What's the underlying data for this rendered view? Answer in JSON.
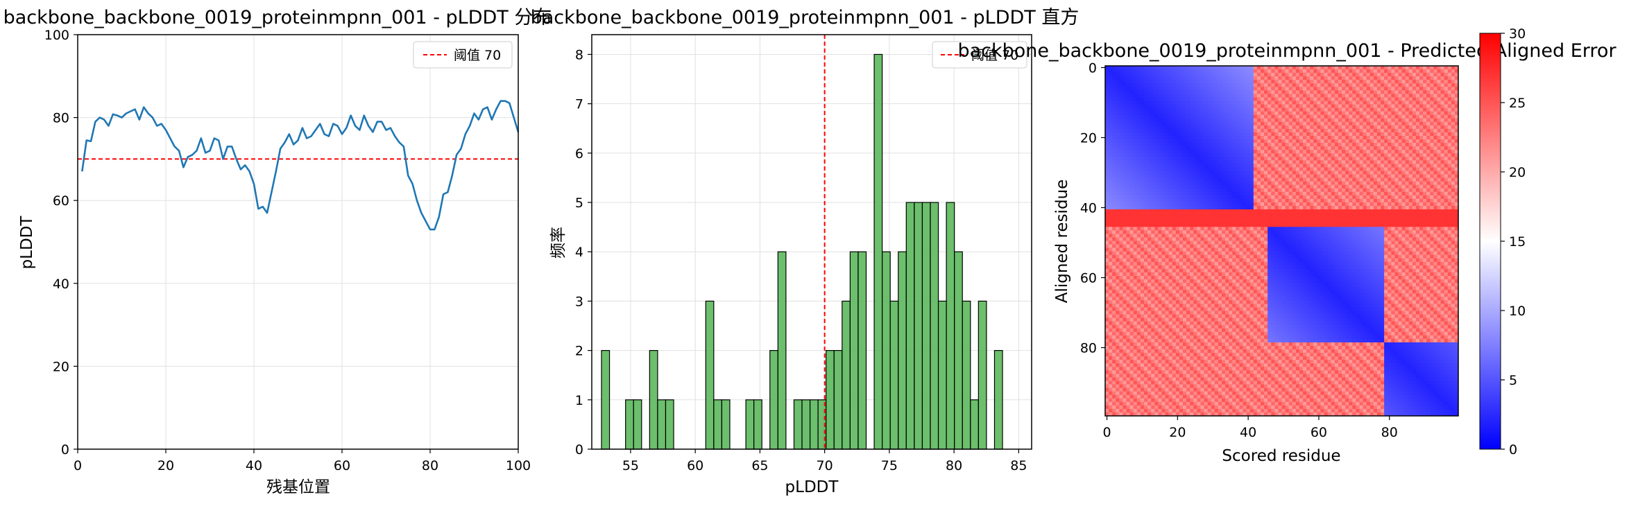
{
  "chart_data": [
    {
      "type": "line",
      "title": "backbone_backbone_0019_proteinmpnn_001 - pLDDT 分布",
      "xlabel": "残基位置",
      "ylabel": "pLDDT",
      "xlim": [
        0,
        100
      ],
      "ylim": [
        0,
        100
      ],
      "xticks": [
        "0",
        "20",
        "40",
        "60",
        "80",
        "100"
      ],
      "yticks": [
        "0",
        "20",
        "40",
        "60",
        "80",
        "100"
      ],
      "grid": true,
      "legend_position": "top-right",
      "line_color": "#1f77b4",
      "threshold": {
        "value": 70,
        "label": "阈值 70",
        "color": "#ff0000"
      },
      "series": [
        {
          "x": [
            1,
            2,
            3,
            4,
            5,
            6,
            7,
            8,
            9,
            10,
            11,
            12,
            13,
            14,
            15,
            16,
            17,
            18,
            19,
            20,
            21,
            22,
            23,
            24,
            25,
            26,
            27,
            28,
            29,
            30,
            31,
            32,
            33,
            34,
            35,
            36,
            37,
            38,
            39,
            40,
            41,
            42,
            43,
            44,
            45,
            46,
            47,
            48,
            49,
            50,
            51,
            52,
            53,
            54,
            55,
            56,
            57,
            58,
            59,
            60,
            61,
            62,
            63,
            64,
            65,
            66,
            67,
            68,
            69,
            70,
            71,
            72,
            73,
            74,
            75,
            76,
            77,
            78,
            79,
            80,
            81,
            82,
            83,
            84,
            85,
            86,
            87,
            88,
            89,
            90,
            91,
            92,
            93,
            94,
            95,
            96,
            97,
            98,
            99,
            100
          ],
          "values": [
            67,
            74.5,
            74.3,
            79,
            80,
            79.5,
            78,
            80.8,
            80.5,
            80,
            81,
            81.5,
            82,
            79.5,
            82.5,
            81,
            80,
            78,
            78.5,
            77,
            75,
            73,
            72,
            68,
            70.5,
            71,
            72,
            75,
            71.5,
            72,
            75,
            74.5,
            70,
            73,
            73,
            70,
            67.5,
            68.5,
            67,
            64,
            58,
            58.5,
            57,
            62,
            67,
            72.5,
            74,
            76,
            73.5,
            74.5,
            77.5,
            75,
            75.5,
            77,
            78.5,
            76,
            75.5,
            78.5,
            78,
            76,
            77.5,
            80.5,
            78,
            77,
            80.5,
            78,
            76.5,
            79,
            79,
            77,
            77.5,
            75.5,
            74,
            73,
            66,
            64,
            60,
            57,
            55,
            53,
            53,
            56,
            61.5,
            62,
            66,
            71,
            72.5,
            76,
            78,
            81,
            79.5,
            82,
            82.5,
            79.5,
            82,
            84,
            84,
            83.5,
            80,
            76.5
          ]
        }
      ]
    },
    {
      "type": "bar",
      "title": "backbone_backbone_0019_proteinmpnn_001 - pLDDT 直方",
      "xlabel": "pLDDT",
      "ylabel": "频率",
      "xlim": [
        52,
        86
      ],
      "ylim": [
        0,
        8.4
      ],
      "xticks": [
        "55",
        "60",
        "65",
        "70",
        "75",
        "80",
        "85"
      ],
      "yticks": [
        "0",
        "1",
        "2",
        "3",
        "4",
        "5",
        "6",
        "7",
        "8"
      ],
      "grid": true,
      "legend_position": "top-right",
      "bar_color": "#5cb85c",
      "threshold": {
        "value": 70,
        "label": "阈值 70",
        "color": "#ff0000"
      },
      "bin_width": 0.62,
      "bins_start": [
        52.75,
        53.37,
        53.99,
        54.61,
        55.23,
        55.85,
        56.47,
        57.09,
        57.71,
        58.33,
        58.95,
        59.57,
        60.19,
        60.81,
        61.43,
        62.05,
        62.67,
        63.29,
        63.91,
        64.53,
        65.15,
        65.77,
        66.39,
        67.01,
        67.63,
        68.25,
        68.87,
        69.49,
        70.11,
        70.73,
        71.35,
        71.97,
        72.59,
        73.21,
        73.83,
        74.45,
        75.07,
        75.69,
        76.31,
        76.93,
        77.55,
        78.17,
        78.79,
        79.41,
        80.03,
        80.65,
        81.27,
        81.89,
        82.51,
        83.13,
        83.75
      ],
      "counts": [
        2,
        0,
        0,
        1,
        1,
        0,
        2,
        1,
        1,
        0,
        0,
        0,
        0,
        3,
        1,
        1,
        0,
        0,
        1,
        1,
        0,
        2,
        4,
        0,
        1,
        1,
        1,
        1,
        2,
        2,
        3,
        4,
        4,
        0,
        8,
        4,
        3,
        4,
        5,
        5,
        5,
        5,
        3,
        5,
        4,
        3,
        1,
        3,
        0,
        2,
        0
      ]
    },
    {
      "type": "heatmap",
      "title": "backbone_backbone_0019_proteinmpnn_001 - Predicted Aligned Error",
      "xlabel": "Scored residue",
      "ylabel": "Aligned residue",
      "size": 100,
      "xticks": [
        "0",
        "20",
        "40",
        "60",
        "80"
      ],
      "yticks": [
        "0",
        "20",
        "40",
        "60",
        "80"
      ],
      "colorscale": "bwr",
      "zlim": [
        0,
        30
      ],
      "colorbar_ticks": [
        "0",
        "5",
        "10",
        "15",
        "20",
        "25",
        "30"
      ],
      "description_values": {
        "domains": [
          [
            0,
            41
          ],
          [
            46,
            78
          ],
          [
            79,
            99
          ]
        ],
        "high_error_rows": [
          41,
          42,
          43,
          44,
          45
        ],
        "within_domain_error": 2,
        "cross_domain_error": 27
      }
    }
  ]
}
